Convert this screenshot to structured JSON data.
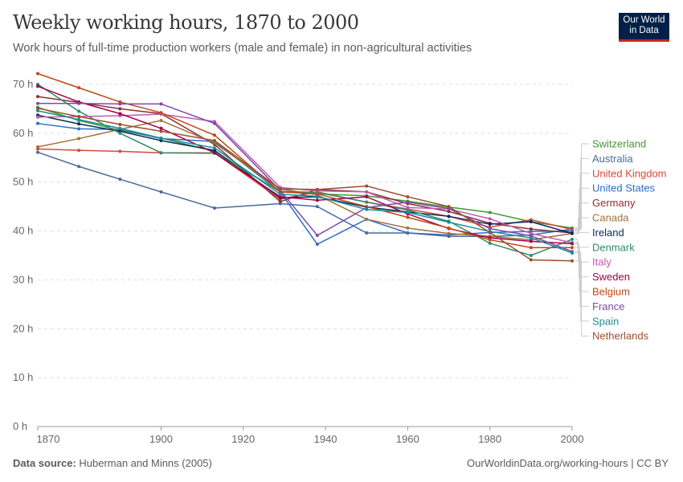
{
  "header": {
    "title": "Weekly working hours, 1870 to 2000",
    "subtitle": "Work hours of full-time production workers (male and female) in non-agricultural activities",
    "logo": "Our World in Data"
  },
  "footer": {
    "source_label": "Data source:",
    "source": "Huberman and Minns (2005)",
    "url": "OurWorldinData.org/working-hours | CC BY"
  },
  "chart_data": {
    "type": "line",
    "title": "Weekly working hours, 1870 to 2000",
    "xlim": [
      1870,
      2000
    ],
    "ylim": [
      0,
      70
    ],
    "x_ticks": [
      1870,
      1900,
      1920,
      1940,
      1960,
      1980,
      2000
    ],
    "y_ticks": [
      0,
      10,
      20,
      30,
      40,
      50,
      60,
      70
    ],
    "y_tick_labels": [
      "0 h",
      "10 h",
      "20 h",
      "30 h",
      "40 h",
      "50 h",
      "60 h",
      "70 h"
    ],
    "grid": "horizontal dashed",
    "legend": "right, end-of-line labels",
    "x": [
      1870,
      1880,
      1890,
      1900,
      1913,
      1929,
      1938,
      1950,
      1960,
      1970,
      1980,
      1990,
      2000
    ],
    "series": [
      {
        "name": "Switzerland",
        "color": "#3e9a2e",
        "values": [
          65.3,
          62.6,
          60.6,
          59.0,
          56.3,
          48.0,
          47.6,
          47.2,
          46.1,
          44.9,
          43.8,
          41.9,
          40.6
        ]
      },
      {
        "name": "Australia",
        "color": "#4c6a9c",
        "values": [
          56.1,
          53.2,
          50.6,
          48.0,
          44.7,
          45.6,
          45.0,
          39.6,
          39.6,
          38.9,
          38.9,
          39.2,
          40.4
        ]
      },
      {
        "name": "United Kingdom",
        "color": "#d9483b",
        "values": [
          56.8,
          56.5,
          56.3,
          56.0,
          56.0,
          46.5,
          48.0,
          45.9,
          44.5,
          43.0,
          40.8,
          42.3,
          40.3
        ]
      },
      {
        "name": "United States",
        "color": "#2c6fc7",
        "values": [
          62.0,
          60.9,
          60.8,
          58.9,
          58.3,
          48.0,
          37.3,
          42.4,
          39.6,
          39.2,
          39.7,
          39.9,
          40.0
        ]
      },
      {
        "name": "Germany",
        "color": "#883039",
        "values": [
          67.5,
          66.3,
          65.0,
          64.0,
          57.7,
          46.0,
          48.5,
          48.0,
          45.6,
          44.0,
          41.6,
          40.4,
          39.6
        ]
      },
      {
        "name": "Canada",
        "color": "#a2733b",
        "values": [
          57.2,
          58.9,
          60.8,
          62.6,
          58.0,
          48.6,
          47.4,
          42.4,
          40.6,
          39.5,
          38.9,
          38.2,
          39.5
        ]
      },
      {
        "name": "Ireland",
        "color": "#0b2a59",
        "values": [
          63.7,
          61.9,
          60.4,
          58.5,
          56.5,
          46.8,
          47.0,
          44.9,
          43.9,
          43.0,
          41.4,
          41.9,
          39.5
        ]
      },
      {
        "name": "Denmark",
        "color": "#2e8b6a",
        "values": [
          70.0,
          64.5,
          60.0,
          56.0,
          55.9,
          48.1,
          47.9,
          45.9,
          44.3,
          42.0,
          37.5,
          35.0,
          38.3
        ]
      },
      {
        "name": "Italy",
        "color": "#c05ab2",
        "values": [
          63.3,
          63.4,
          63.6,
          63.9,
          62.4,
          48.9,
          48.2,
          48.0,
          44.8,
          44.5,
          42.5,
          39.5,
          37.6
        ]
      },
      {
        "name": "Sweden",
        "color": "#a2004b",
        "values": [
          69.6,
          66.4,
          64.0,
          61.0,
          56.0,
          47.0,
          46.3,
          47.0,
          43.5,
          40.5,
          38.6,
          37.9,
          37.4
        ]
      },
      {
        "name": "Belgium",
        "color": "#c04a12",
        "values": [
          72.2,
          69.3,
          66.4,
          64.2,
          59.6,
          48.0,
          47.6,
          45.0,
          42.8,
          40.6,
          38.2,
          36.6,
          36.6
        ]
      },
      {
        "name": "France",
        "color": "#7e4aa8",
        "values": [
          66.1,
          66.1,
          66.0,
          66.0,
          62.0,
          48.3,
          39.1,
          44.8,
          45.9,
          44.6,
          40.5,
          39.0,
          35.8
        ]
      },
      {
        "name": "Spain",
        "color": "#1a8e9a",
        "values": [
          64.6,
          62.8,
          61.0,
          59.0,
          57.0,
          47.5,
          47.1,
          44.4,
          43.8,
          41.8,
          39.9,
          38.6,
          35.5
        ]
      },
      {
        "name": "Netherlands",
        "color": "#9b4e2c",
        "values": [
          65.1,
          63.4,
          61.8,
          60.4,
          58.5,
          48.6,
          48.5,
          49.2,
          47.0,
          45.0,
          39.7,
          34.1,
          33.9
        ]
      }
    ]
  }
}
